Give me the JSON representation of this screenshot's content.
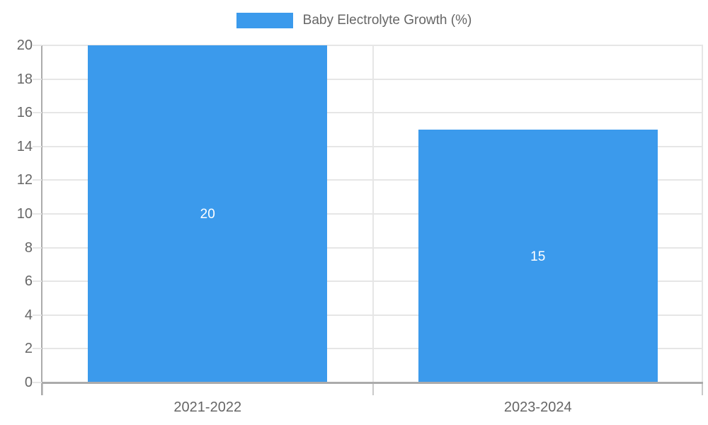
{
  "chart_data": {
    "type": "bar",
    "title": "Baby Electrolyte Growth (%)",
    "legend": {
      "label": "Baby Electrolyte Growth (%)",
      "position": "top"
    },
    "categories": [
      "2021-2022",
      "2023-2024"
    ],
    "series": [
      {
        "name": "Baby Electrolyte Growth (%)",
        "values": [
          20,
          15
        ]
      }
    ],
    "data_labels": [
      "20",
      "15"
    ],
    "xlabel": "",
    "ylabel": "",
    "ylim": [
      0,
      20
    ],
    "ytick_step": 2,
    "yticks": [
      0,
      2,
      4,
      6,
      8,
      10,
      12,
      14,
      16,
      18,
      20
    ],
    "grid": true,
    "legend_position": "top-center"
  },
  "colors": {
    "bar": "#3B9AEC",
    "grid": "#E6E6E6",
    "axis": "#ABABAB",
    "tick": "#C9C9C9",
    "tick_text": "#666666",
    "bar_label_text": "#FFFFFF",
    "background": "#FFFFFF"
  }
}
